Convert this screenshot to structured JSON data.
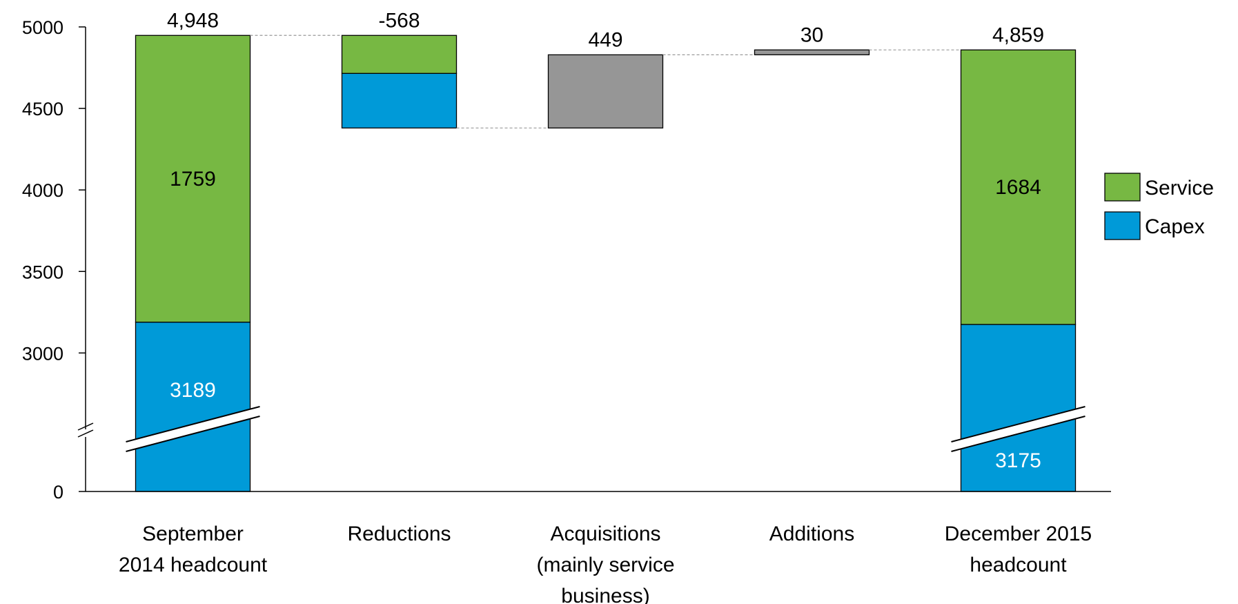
{
  "chart_data": {
    "type": "bar",
    "subtype": "waterfall-stacked",
    "y_axis": {
      "ticks": [
        0,
        3000,
        3500,
        4000,
        4500,
        5000
      ],
      "break": true,
      "break_range": [
        0,
        2650
      ],
      "ylim": [
        0,
        5000
      ]
    },
    "categories": [
      {
        "lines": [
          "September",
          "2014 headcount"
        ]
      },
      {
        "lines": [
          "Reductions"
        ]
      },
      {
        "lines": [
          "Acquisitions",
          "(mainly service",
          "business)"
        ]
      },
      {
        "lines": [
          "Additions"
        ]
      },
      {
        "lines": [
          "December 2015",
          "headcount"
        ]
      }
    ],
    "bars": [
      {
        "kind": "total",
        "total": 4948,
        "total_label": "4,948",
        "segments": [
          {
            "series": "Capex",
            "from": 0,
            "to": 3189,
            "label": "3189"
          },
          {
            "series": "Service",
            "from": 3189,
            "to": 4948,
            "label": "1759"
          }
        ]
      },
      {
        "kind": "delta",
        "total": -568,
        "total_label": "-568",
        "segments": [
          {
            "series": "Capex",
            "from": 4380,
            "to": 4715
          },
          {
            "series": "Service",
            "from": 4715,
            "to": 4948
          }
        ]
      },
      {
        "kind": "delta",
        "total": 449,
        "total_label": "449",
        "segments": [
          {
            "series": "Other",
            "from": 4380,
            "to": 4829
          }
        ]
      },
      {
        "kind": "delta",
        "total": 30,
        "total_label": "30",
        "segments": [
          {
            "series": "Other",
            "from": 4829,
            "to": 4859
          }
        ]
      },
      {
        "kind": "total",
        "total": 4859,
        "total_label": "4,859",
        "segments": [
          {
            "series": "Capex",
            "from": 0,
            "to": 3175,
            "label": "3175"
          },
          {
            "series": "Service",
            "from": 3175,
            "to": 4859,
            "label": "1684"
          }
        ]
      }
    ],
    "connectors": [
      {
        "from_bar": 0,
        "to_bar": 1,
        "value": 4948
      },
      {
        "from_bar": 1,
        "to_bar": 2,
        "value": 4380
      },
      {
        "from_bar": 2,
        "to_bar": 3,
        "value": 4829
      },
      {
        "from_bar": 3,
        "to_bar": 4,
        "value": 4859
      }
    ],
    "legend": {
      "placement": "right",
      "entries": [
        {
          "series": "Service",
          "label": "Service"
        },
        {
          "series": "Capex",
          "label": "Capex"
        }
      ]
    },
    "colors": {
      "Service": "#77b843",
      "Capex": "#009ad8",
      "Other": "#969696",
      "connector": "#999999",
      "axis": "#000000"
    }
  }
}
